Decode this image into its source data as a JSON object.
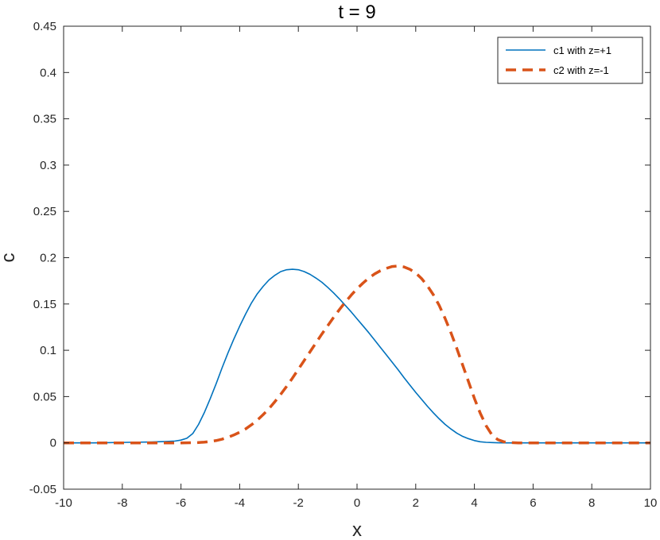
{
  "chart_data": {
    "type": "line",
    "title": "t = 9",
    "xlabel": "x",
    "ylabel": "c",
    "xlim": [
      -10,
      10
    ],
    "ylim": [
      -0.05,
      0.45
    ],
    "xticks": [
      -10,
      -8,
      -6,
      -4,
      -2,
      0,
      2,
      4,
      6,
      8,
      10
    ],
    "xtick_labels": [
      "-10",
      "-8",
      "-6",
      "-4",
      "-2",
      "0",
      "2",
      "4",
      "6",
      "8",
      "10"
    ],
    "yticks": [
      -0.05,
      0,
      0.05,
      0.1,
      0.15,
      0.2,
      0.25,
      0.3,
      0.35,
      0.4,
      0.45
    ],
    "ytick_labels": [
      "-0.05",
      "0",
      "0.05",
      "0.1",
      "0.15",
      "0.2",
      "0.25",
      "0.3",
      "0.35",
      "0.4",
      "0.45"
    ],
    "grid": false,
    "legend_position": "top-right",
    "series": [
      {
        "name": "c1 with z=+1",
        "color": "#0072BD",
        "style": "solid",
        "x": [
          -10,
          -9,
          -8,
          -7,
          -6.5,
          -6.2,
          -6.0,
          -5.8,
          -5.6,
          -5.4,
          -5.2,
          -5.0,
          -4.8,
          -4.6,
          -4.4,
          -4.2,
          -4.0,
          -3.8,
          -3.6,
          -3.4,
          -3.2,
          -3.0,
          -2.8,
          -2.6,
          -2.4,
          -2.2,
          -2.0,
          -1.8,
          -1.6,
          -1.4,
          -1.2,
          -1.0,
          -0.8,
          -0.6,
          -0.4,
          -0.2,
          0.0,
          0.2,
          0.4,
          0.6,
          0.8,
          1.0,
          1.2,
          1.4,
          1.6,
          1.8,
          2.0,
          2.2,
          2.4,
          2.6,
          2.8,
          3.0,
          3.2,
          3.4,
          3.6,
          3.8,
          4.0,
          4.2,
          4.4,
          4.6,
          4.8,
          5.0,
          5.5,
          6,
          7,
          8,
          9,
          10
        ],
        "y": [
          0.0,
          0.0,
          0.0005,
          0.001,
          0.0015,
          0.002,
          0.003,
          0.005,
          0.01,
          0.02,
          0.033,
          0.048,
          0.064,
          0.081,
          0.097,
          0.112,
          0.126,
          0.139,
          0.151,
          0.161,
          0.169,
          0.176,
          0.181,
          0.185,
          0.187,
          0.1875,
          0.187,
          0.185,
          0.182,
          0.178,
          0.1735,
          0.168,
          0.162,
          0.1555,
          0.1485,
          0.1415,
          0.134,
          0.1265,
          0.119,
          0.111,
          0.103,
          0.095,
          0.087,
          0.079,
          0.0705,
          0.0625,
          0.0545,
          0.047,
          0.0395,
          0.0325,
          0.026,
          0.02,
          0.015,
          0.0105,
          0.007,
          0.0045,
          0.0025,
          0.0012,
          0.0006,
          0.0003,
          0.0001,
          0.0,
          0.0,
          0.0,
          0.0,
          0.0,
          0.0,
          0.0
        ]
      },
      {
        "name": "c2 with z=-1",
        "color": "#D95319",
        "style": "dashed",
        "x": [
          -10,
          -9,
          -8,
          -7,
          -6,
          -5.5,
          -5.2,
          -5.0,
          -4.8,
          -4.6,
          -4.4,
          -4.2,
          -4.0,
          -3.8,
          -3.6,
          -3.4,
          -3.2,
          -3.0,
          -2.8,
          -2.6,
          -2.4,
          -2.2,
          -2.0,
          -1.8,
          -1.6,
          -1.4,
          -1.2,
          -1.0,
          -0.8,
          -0.6,
          -0.4,
          -0.2,
          0.0,
          0.2,
          0.4,
          0.6,
          0.8,
          1.0,
          1.2,
          1.4,
          1.6,
          1.8,
          2.0,
          2.2,
          2.4,
          2.6,
          2.8,
          3.0,
          3.2,
          3.4,
          3.6,
          3.8,
          4.0,
          4.2,
          4.4,
          4.6,
          4.8,
          5.0,
          5.2,
          5.5,
          6,
          7,
          8,
          9,
          10
        ],
        "y": [
          0.0,
          0.0,
          0.0,
          0.0,
          0.0,
          0.0002,
          0.0008,
          0.0015,
          0.0025,
          0.004,
          0.006,
          0.0085,
          0.0115,
          0.015,
          0.0195,
          0.0245,
          0.0305,
          0.037,
          0.0445,
          0.0525,
          0.061,
          0.07,
          0.0795,
          0.089,
          0.0985,
          0.108,
          0.1175,
          0.1265,
          0.1355,
          0.144,
          0.152,
          0.1595,
          0.1665,
          0.1725,
          0.178,
          0.1825,
          0.186,
          0.1885,
          0.1905,
          0.191,
          0.19,
          0.1875,
          0.1835,
          0.1775,
          0.1695,
          0.16,
          0.1485,
          0.1345,
          0.119,
          0.102,
          0.084,
          0.066,
          0.048,
          0.032,
          0.0185,
          0.0085,
          0.0035,
          0.0012,
          0.0004,
          0.0,
          0.0,
          0.0,
          0.0,
          0.0,
          0.0
        ]
      }
    ]
  }
}
